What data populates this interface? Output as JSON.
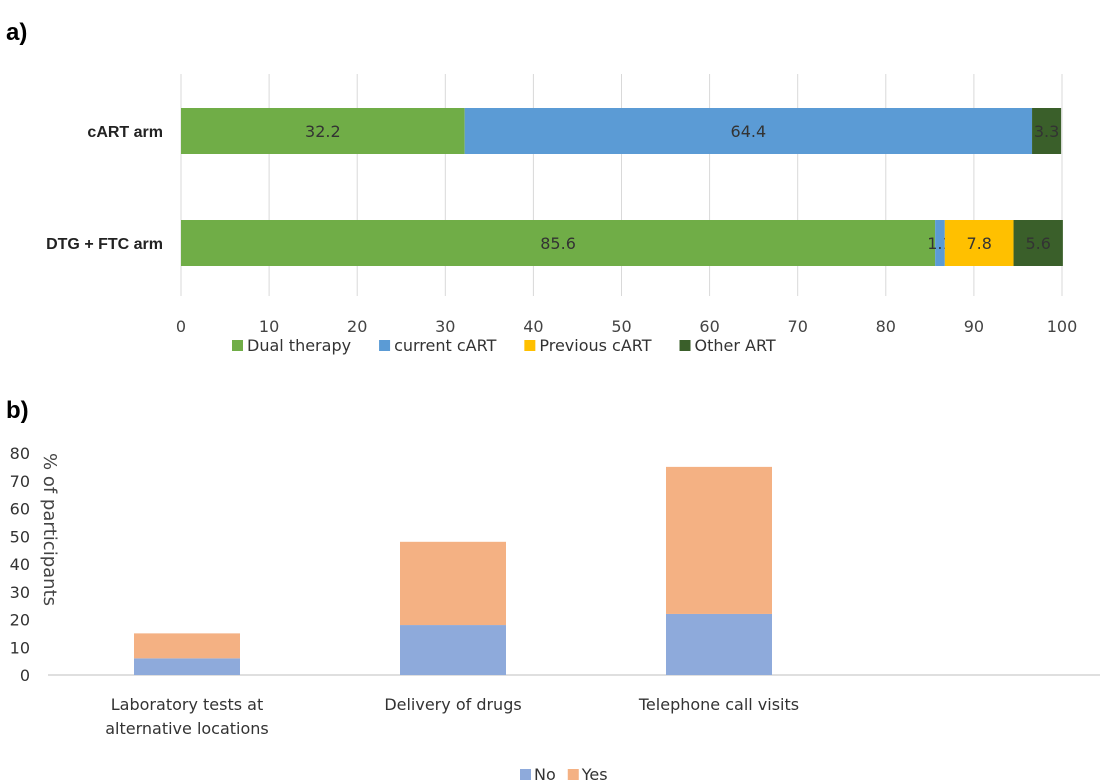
{
  "panels": {
    "a": "a)",
    "b": "b)"
  },
  "chart_data": [
    {
      "type": "bar",
      "orientation": "horizontal",
      "stacked": true,
      "categories": [
        "cART arm",
        "DTG + FTC arm"
      ],
      "series": [
        {
          "name": "Dual therapy",
          "color": "#70ad47",
          "values": [
            32.2,
            85.6
          ],
          "labels": [
            "32.2",
            "85.6"
          ]
        },
        {
          "name": "current cART",
          "color": "#5b9bd5",
          "values": [
            64.4,
            1.1
          ],
          "labels": [
            "64.4",
            "1.1"
          ]
        },
        {
          "name": "Previous cART",
          "color": "#ffc000",
          "values": [
            0,
            7.8
          ],
          "labels": [
            "",
            "7.8"
          ]
        },
        {
          "name": "Other ART",
          "color": "#3a5f2a",
          "values": [
            3.3,
            5.6
          ],
          "labels": [
            "3.3",
            "5.6"
          ]
        }
      ],
      "xlim": [
        0,
        100
      ],
      "xticks": [
        "0",
        "10",
        "20",
        "30",
        "40",
        "50",
        "60",
        "70",
        "80",
        "90",
        "100"
      ],
      "grid": "vertical",
      "legend": "bottom"
    },
    {
      "type": "bar",
      "stacked": true,
      "categories": [
        "Laboratory tests at alternative locations",
        "Delivery of drugs",
        "Telephone call visits"
      ],
      "category_lines": [
        [
          "Laboratory tests at",
          "alternative locations"
        ],
        [
          "Delivery of drugs"
        ],
        [
          "Telephone call visits"
        ]
      ],
      "series": [
        {
          "name": "No",
          "color": "#8eaadb",
          "values": [
            6,
            18,
            22
          ]
        },
        {
          "name": "Yes",
          "color": "#f4b183",
          "values": [
            9,
            30,
            53
          ]
        }
      ],
      "ylabel": "% of participants",
      "ylim": [
        0,
        80
      ],
      "yticks": [
        "0",
        "10",
        "20",
        "30",
        "40",
        "50",
        "60",
        "70",
        "80"
      ],
      "grid": "none",
      "legend": "bottom"
    }
  ]
}
